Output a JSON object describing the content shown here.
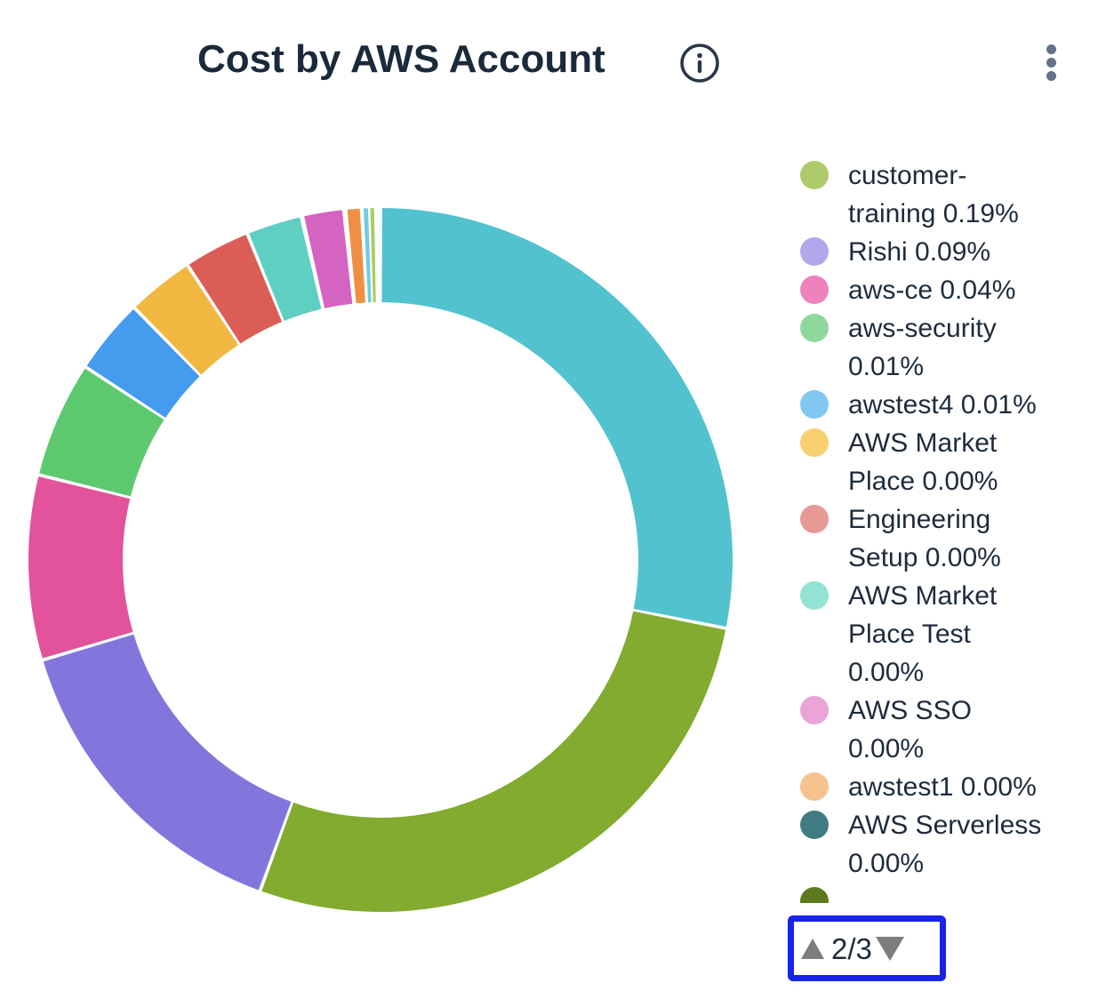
{
  "header": {
    "title": "Cost by AWS Account"
  },
  "chart_data": {
    "type": "donut",
    "title": "Cost by AWS Account",
    "legend_position": "right",
    "legend_page": "2/3",
    "inner_radius_ratio": 0.73,
    "segments": [
      {
        "color": "#52c2cf",
        "start_deg": 0.0,
        "end_deg": 101.2,
        "approx_percent": 28.1
      },
      {
        "color": "#82ab2f",
        "start_deg": 101.2,
        "end_deg": 200.0,
        "approx_percent": 27.4
      },
      {
        "color": "#8276dd",
        "start_deg": 200.0,
        "end_deg": 253.5,
        "approx_percent": 14.9
      },
      {
        "color": "#e2539b",
        "start_deg": 253.5,
        "end_deg": 284.0,
        "approx_percent": 8.5
      },
      {
        "color": "#5cc96e",
        "start_deg": 284.0,
        "end_deg": 303.2,
        "approx_percent": 5.3
      },
      {
        "color": "#459bed",
        "start_deg": 303.2,
        "end_deg": 315.7,
        "approx_percent": 3.5
      },
      {
        "color": "#f0b840",
        "start_deg": 315.7,
        "end_deg": 326.8,
        "approx_percent": 3.1
      },
      {
        "color": "#db5e56",
        "start_deg": 326.8,
        "end_deg": 337.8,
        "approx_percent": 3.1
      },
      {
        "color": "#5fcfc2",
        "start_deg": 337.8,
        "end_deg": 347.0,
        "approx_percent": 2.6
      },
      {
        "color": "#d463c1",
        "start_deg": 347.2,
        "end_deg": 354.0,
        "approx_percent": 1.9
      },
      {
        "color": "#ef8f44",
        "start_deg": 354.3,
        "end_deg": 356.9,
        "approx_percent": 0.7
      },
      {
        "color": "#72cbe2",
        "start_deg": 357.2,
        "end_deg": 358.0,
        "approx_percent": 0.2
      },
      {
        "color": "#aacd5f",
        "start_deg": 358.3,
        "end_deg": 359.0,
        "approx_percent": 0.2
      }
    ],
    "legend_items": [
      {
        "label": "customer-training 0.19%",
        "color": "#aec96a"
      },
      {
        "label": "Rishi 0.09%",
        "color": "#b4a6ea"
      },
      {
        "label": "aws-ce 0.04%",
        "color": "#ef82ba"
      },
      {
        "label": "aws-security 0.01%",
        "color": "#8fd89c"
      },
      {
        "label": "awstest4 0.01%",
        "color": "#82c6f2"
      },
      {
        "label": "AWS Market Place 0.00%",
        "color": "#f7cf6e"
      },
      {
        "label": "Engineering Setup 0.00%",
        "color": "#e79996"
      },
      {
        "label": "AWS Market Place Test 0.00%",
        "color": "#93e2d4"
      },
      {
        "label": "AWS SSO 0.00%",
        "color": "#eaa5d6"
      },
      {
        "label": "awstest1 0.00%",
        "color": "#f6c28e"
      },
      {
        "label": "AWS Serverless 0.00%",
        "color": "#3e7c82"
      },
      {
        "label": "",
        "color": "#5c7a1e",
        "partial": true
      }
    ]
  },
  "pagination": {
    "page": "2/3",
    "highlight_color": "#1723e8"
  },
  "icons": {
    "info": "info-circle",
    "menu": "kebab-vertical"
  }
}
